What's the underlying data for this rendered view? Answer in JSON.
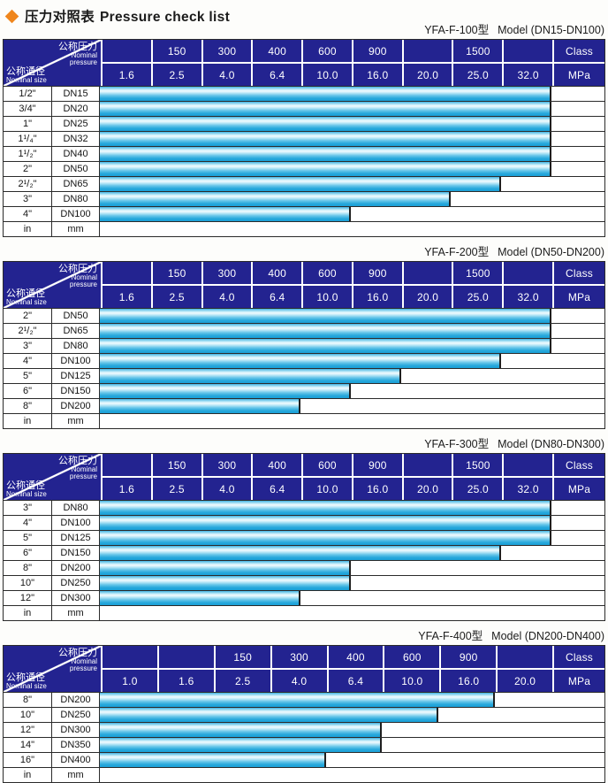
{
  "title": {
    "zh": "压力对照表",
    "en": "Pressure check list",
    "diamond_color": "#ef861d"
  },
  "colors": {
    "header_bg": "#232390",
    "bar_cyan": "#27a8dc",
    "bar_highlight": "#f2fbfe",
    "grid_line": "#2b2b2b"
  },
  "header_labels": {
    "pressure_zh": "公称压力",
    "pressure_en_line1": "Nominal",
    "pressure_en_line2": "pressure",
    "size_zh": "公称通径",
    "size_en": "Nominal size",
    "class_label": "Class",
    "mpa_label": "MPa"
  },
  "tables": [
    {
      "model": "YFA-F-100型",
      "model_range": "Model (DN15-DN100)",
      "class_row": [
        "",
        "150",
        "300",
        "400",
        "600",
        "900",
        "",
        "1500",
        ""
      ],
      "mpa_row": [
        "1.6",
        "2.5",
        "4.0",
        "6.4",
        "10.0",
        "16.0",
        "20.0",
        "25.0",
        "32.0"
      ],
      "rows": [
        {
          "size": "1/2\"",
          "dn": "DN15",
          "bar_cols": 9,
          "max_mpa": "32.0"
        },
        {
          "size": "3/4\"",
          "dn": "DN20",
          "bar_cols": 9,
          "max_mpa": "32.0"
        },
        {
          "size": "1\"",
          "dn": "DN25",
          "bar_cols": 9,
          "max_mpa": "32.0"
        },
        {
          "size": "1¹/₄\"",
          "dn": "DN32",
          "bar_cols": 9,
          "max_mpa": "32.0"
        },
        {
          "size": "1¹/₂\"",
          "dn": "DN40",
          "bar_cols": 9,
          "max_mpa": "32.0"
        },
        {
          "size": "2\"",
          "dn": "DN50",
          "bar_cols": 9,
          "max_mpa": "32.0"
        },
        {
          "size": "2¹/₂\"",
          "dn": "DN65",
          "bar_cols": 8,
          "max_mpa": "25.0"
        },
        {
          "size": "3\"",
          "dn": "DN80",
          "bar_cols": 7,
          "max_mpa": "20.0"
        },
        {
          "size": "4\"",
          "dn": "DN100",
          "bar_cols": 5,
          "max_mpa": "10.0"
        },
        {
          "size": "in",
          "dn": "mm",
          "bar_cols": 0,
          "max_mpa": ""
        }
      ]
    },
    {
      "model": "YFA-F-200型",
      "model_range": "Model (DN50-DN200)",
      "class_row": [
        "",
        "150",
        "300",
        "400",
        "600",
        "900",
        "",
        "1500",
        ""
      ],
      "mpa_row": [
        "1.6",
        "2.5",
        "4.0",
        "6.4",
        "10.0",
        "16.0",
        "20.0",
        "25.0",
        "32.0"
      ],
      "rows": [
        {
          "size": "2\"",
          "dn": "DN50",
          "bar_cols": 9,
          "max_mpa": "32.0"
        },
        {
          "size": "2¹/₂\"",
          "dn": "DN65",
          "bar_cols": 9,
          "max_mpa": "32.0"
        },
        {
          "size": "3\"",
          "dn": "DN80",
          "bar_cols": 9,
          "max_mpa": "32.0"
        },
        {
          "size": "4\"",
          "dn": "DN100",
          "bar_cols": 8,
          "max_mpa": "25.0"
        },
        {
          "size": "5\"",
          "dn": "DN125",
          "bar_cols": 6,
          "max_mpa": "16.0"
        },
        {
          "size": "6\"",
          "dn": "DN150",
          "bar_cols": 5,
          "max_mpa": "10.0"
        },
        {
          "size": "8\"",
          "dn": "DN200",
          "bar_cols": 4,
          "max_mpa": "6.4"
        },
        {
          "size": "in",
          "dn": "mm",
          "bar_cols": 0,
          "max_mpa": ""
        }
      ]
    },
    {
      "model": "YFA-F-300型",
      "model_range": "Model (DN80-DN300)",
      "class_row": [
        "",
        "150",
        "300",
        "400",
        "600",
        "900",
        "",
        "1500",
        ""
      ],
      "mpa_row": [
        "1.6",
        "2.5",
        "4.0",
        "6.4",
        "10.0",
        "16.0",
        "20.0",
        "25.0",
        "32.0"
      ],
      "rows": [
        {
          "size": "3\"",
          "dn": "DN80",
          "bar_cols": 9,
          "max_mpa": "32.0"
        },
        {
          "size": "4\"",
          "dn": "DN100",
          "bar_cols": 9,
          "max_mpa": "32.0"
        },
        {
          "size": "5\"",
          "dn": "DN125",
          "bar_cols": 9,
          "max_mpa": "32.0"
        },
        {
          "size": "6\"",
          "dn": "DN150",
          "bar_cols": 8,
          "max_mpa": "25.0"
        },
        {
          "size": "8\"",
          "dn": "DN200",
          "bar_cols": 5,
          "max_mpa": "10.0"
        },
        {
          "size": "10\"",
          "dn": "DN250",
          "bar_cols": 5,
          "max_mpa": "10.0"
        },
        {
          "size": "12\"",
          "dn": "DN300",
          "bar_cols": 4,
          "max_mpa": "6.4"
        },
        {
          "size": "in",
          "dn": "mm",
          "bar_cols": 0,
          "max_mpa": ""
        }
      ]
    },
    {
      "model": "YFA-F-400型",
      "model_range": "Model (DN200-DN400)",
      "class_row": [
        "",
        "",
        "150",
        "300",
        "400",
        "600",
        "900",
        ""
      ],
      "mpa_row": [
        "1.0",
        "1.6",
        "2.5",
        "4.0",
        "6.4",
        "10.0",
        "16.0",
        "20.0"
      ],
      "rows": [
        {
          "size": "8\"",
          "dn": "DN200",
          "bar_cols": 7,
          "max_mpa": "16.0"
        },
        {
          "size": "10\"",
          "dn": "DN250",
          "bar_cols": 6,
          "max_mpa": "10.0"
        },
        {
          "size": "12\"",
          "dn": "DN300",
          "bar_cols": 5,
          "max_mpa": "6.4"
        },
        {
          "size": "14\"",
          "dn": "DN350",
          "bar_cols": 5,
          "max_mpa": "6.4"
        },
        {
          "size": "16\"",
          "dn": "DN400",
          "bar_cols": 4,
          "max_mpa": "4.0"
        },
        {
          "size": "in",
          "dn": "mm",
          "bar_cols": 0,
          "max_mpa": ""
        }
      ]
    }
  ]
}
